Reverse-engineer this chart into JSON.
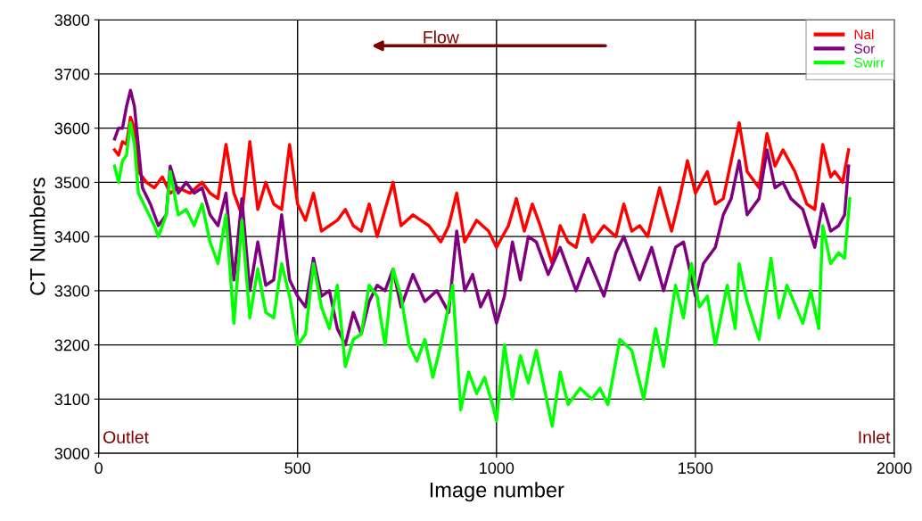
{
  "chart_data": {
    "type": "line",
    "xlabel": "Image number",
    "ylabel": "CT Numbers",
    "xlim": [
      0,
      2000
    ],
    "xticks": [
      0,
      500,
      1000,
      1500,
      2000
    ],
    "ylim": [
      3000,
      3800
    ],
    "yticks": [
      3000,
      3100,
      3200,
      3300,
      3400,
      3500,
      3600,
      3700,
      3800
    ],
    "grid": true,
    "legend": "top right",
    "marker": "none",
    "line_style": "solid",
    "annotations": [
      "Flow",
      "Outlet",
      "Inlet"
    ],
    "series": [
      {
        "name": "Nal",
        "color": "#ff0000",
        "x": [
          40,
          50,
          60,
          70,
          80,
          90,
          100,
          120,
          140,
          160,
          180,
          200,
          230,
          260,
          280,
          300,
          320,
          340,
          360,
          380,
          400,
          420,
          440,
          460,
          480,
          500,
          520,
          540,
          560,
          600,
          620,
          640,
          660,
          680,
          700,
          740,
          760,
          790,
          830,
          860,
          880,
          900,
          920,
          950,
          980,
          1000,
          1030,
          1050,
          1070,
          1090,
          1110,
          1140,
          1160,
          1180,
          1200,
          1220,
          1240,
          1270,
          1300,
          1320,
          1340,
          1360,
          1380,
          1410,
          1440,
          1460,
          1480,
          1500,
          1530,
          1550,
          1570,
          1590,
          1610,
          1630,
          1660,
          1680,
          1700,
          1720,
          1750,
          1780,
          1800,
          1820,
          1840,
          1850,
          1870,
          1885
        ],
        "values": [
          3560,
          3550,
          3575,
          3570,
          3620,
          3600,
          3520,
          3500,
          3490,
          3510,
          3480,
          3490,
          3480,
          3500,
          3480,
          3470,
          3570,
          3480,
          3440,
          3575,
          3450,
          3500,
          3460,
          3450,
          3570,
          3460,
          3430,
          3480,
          3410,
          3430,
          3450,
          3420,
          3410,
          3460,
          3400,
          3500,
          3420,
          3440,
          3420,
          3390,
          3420,
          3480,
          3390,
          3430,
          3410,
          3380,
          3420,
          3470,
          3410,
          3460,
          3420,
          3350,
          3420,
          3390,
          3380,
          3440,
          3390,
          3420,
          3400,
          3460,
          3410,
          3420,
          3400,
          3490,
          3410,
          3470,
          3540,
          3480,
          3520,
          3460,
          3470,
          3540,
          3610,
          3520,
          3490,
          3590,
          3530,
          3560,
          3520,
          3460,
          3450,
          3570,
          3510,
          3520,
          3500,
          3560
        ]
      },
      {
        "name": "Sor",
        "color": "#7f007f",
        "x": [
          40,
          50,
          60,
          70,
          80,
          90,
          110,
          130,
          150,
          170,
          180,
          200,
          220,
          240,
          260,
          280,
          300,
          320,
          340,
          360,
          380,
          400,
          420,
          440,
          460,
          480,
          500,
          520,
          540,
          560,
          580,
          600,
          620,
          640,
          660,
          680,
          700,
          720,
          740,
          760,
          790,
          820,
          850,
          880,
          900,
          920,
          940,
          960,
          980,
          1000,
          1020,
          1040,
          1060,
          1080,
          1100,
          1130,
          1160,
          1200,
          1230,
          1270,
          1300,
          1320,
          1360,
          1390,
          1420,
          1450,
          1470,
          1500,
          1520,
          1550,
          1570,
          1590,
          1610,
          1630,
          1660,
          1680,
          1700,
          1720,
          1740,
          1770,
          1800,
          1820,
          1840,
          1860,
          1875,
          1885
        ],
        "values": [
          3580,
          3600,
          3600,
          3640,
          3670,
          3640,
          3490,
          3460,
          3420,
          3440,
          3530,
          3480,
          3500,
          3480,
          3490,
          3440,
          3420,
          3480,
          3320,
          3470,
          3300,
          3390,
          3310,
          3320,
          3440,
          3320,
          3290,
          3270,
          3360,
          3290,
          3300,
          3230,
          3200,
          3260,
          3220,
          3280,
          3310,
          3300,
          3340,
          3270,
          3330,
          3280,
          3300,
          3260,
          3410,
          3300,
          3330,
          3270,
          3300,
          3240,
          3290,
          3390,
          3320,
          3400,
          3390,
          3330,
          3380,
          3300,
          3360,
          3290,
          3370,
          3400,
          3320,
          3380,
          3300,
          3380,
          3390,
          3290,
          3350,
          3380,
          3440,
          3470,
          3540,
          3440,
          3470,
          3560,
          3490,
          3500,
          3470,
          3450,
          3380,
          3460,
          3410,
          3420,
          3440,
          3530
        ]
      },
      {
        "name": "Swirr",
        "color": "#00ff00",
        "x": [
          40,
          50,
          60,
          70,
          80,
          90,
          100,
          120,
          140,
          150,
          170,
          180,
          200,
          220,
          240,
          260,
          280,
          300,
          320,
          340,
          360,
          380,
          400,
          420,
          440,
          460,
          480,
          500,
          520,
          540,
          560,
          580,
          600,
          620,
          640,
          660,
          680,
          700,
          720,
          740,
          760,
          780,
          800,
          820,
          840,
          860,
          890,
          910,
          930,
          950,
          970,
          990,
          1000,
          1020,
          1040,
          1060,
          1080,
          1100,
          1120,
          1140,
          1160,
          1180,
          1210,
          1240,
          1260,
          1280,
          1310,
          1340,
          1370,
          1400,
          1420,
          1450,
          1470,
          1490,
          1510,
          1530,
          1550,
          1580,
          1600,
          1610,
          1630,
          1660,
          1690,
          1710,
          1730,
          1770,
          1790,
          1810,
          1820,
          1840,
          1860,
          1875,
          1888
        ],
        "values": [
          3530,
          3500,
          3540,
          3550,
          3610,
          3570,
          3480,
          3450,
          3420,
          3400,
          3440,
          3520,
          3440,
          3450,
          3420,
          3460,
          3390,
          3350,
          3440,
          3240,
          3430,
          3250,
          3340,
          3260,
          3250,
          3350,
          3290,
          3200,
          3220,
          3350,
          3270,
          3230,
          3310,
          3160,
          3210,
          3220,
          3310,
          3290,
          3200,
          3340,
          3290,
          3200,
          3170,
          3210,
          3140,
          3200,
          3310,
          3080,
          3150,
          3110,
          3140,
          3090,
          3060,
          3200,
          3100,
          3180,
          3130,
          3190,
          3120,
          3050,
          3150,
          3090,
          3120,
          3100,
          3120,
          3090,
          3210,
          3190,
          3100,
          3230,
          3160,
          3310,
          3250,
          3350,
          3270,
          3290,
          3200,
          3310,
          3230,
          3350,
          3280,
          3210,
          3360,
          3250,
          3310,
          3240,
          3300,
          3230,
          3420,
          3350,
          3370,
          3360,
          3470
        ]
      }
    ]
  }
}
